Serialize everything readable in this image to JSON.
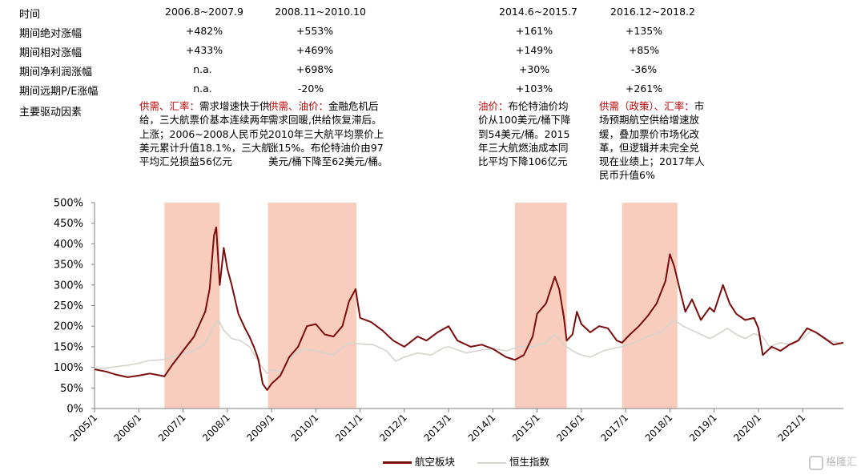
{
  "table": {
    "rows": [
      {
        "label": "时间",
        "values": [
          "2006.8~2007.9",
          "2008.11~2010.10",
          "2014.6~2015.7",
          "2016.12~2018.2"
        ]
      },
      {
        "label": "期间绝对涨幅",
        "values": [
          "+482%",
          "+553%",
          "+161%",
          "+135%"
        ]
      },
      {
        "label": "期间相对涨幅",
        "values": [
          "+433%",
          "+469%",
          "+149%",
          "+85%"
        ]
      },
      {
        "label": "期间净利润涨幅",
        "values": [
          "n.a.",
          "+698%",
          "+30%",
          "-36%"
        ]
      },
      {
        "label": "期间远期P/E涨幅",
        "values": [
          "n.a.",
          "-20%",
          "+103%",
          "+261%"
        ]
      }
    ],
    "driver_label": "主要驱动因素",
    "drivers": [
      {
        "key": "供需、汇率：",
        "text": "需求增速快于供给，三大航票价基本连续两年上涨；2006~2008人民币兑美元累计升值18.1%，三大航平均汇兑损益56亿元"
      },
      {
        "key": "供需、油价：",
        "text": "金融危机后需求回暖,供给恢复滞后。2010年三大航平均票价上涨15%。布伦特油价由97美元/桶下降至62美元/桶。"
      },
      {
        "key": "油价：",
        "text": "布伦特油价均价从100美元/桶下降到54美元/桶。2015年三大航燃油成本同比平均下降106亿元"
      },
      {
        "key": "供需（政策）、汇率：",
        "text": "市场预期航空供给增速放缓，叠加票价市场化改革，但逻辑并未完全兑现在业绩上；2017年人民币升值6%"
      }
    ]
  },
  "chart_data": {
    "type": "line",
    "yticks": [
      "0%",
      "50%",
      "100%",
      "150%",
      "200%",
      "250%",
      "300%",
      "350%",
      "400%",
      "450%",
      "500%"
    ],
    "ylim": [
      0,
      500
    ],
    "xticks": [
      "2005/1",
      "2006/1",
      "2007/1",
      "2008/1",
      "2009/1",
      "2010/1",
      "2011/1",
      "2012/1",
      "2013/1",
      "2014/1",
      "2015/1",
      "2016/1",
      "2017/1",
      "2018/1",
      "2019/1",
      "2020/1",
      "2021/1"
    ],
    "xlim": [
      2005.0,
      2021.92
    ],
    "shaded_periods": [
      [
        2006.58,
        2007.83
      ],
      [
        2008.92,
        2010.92
      ],
      [
        2014.5,
        2015.67
      ],
      [
        2016.92,
        2018.17
      ]
    ],
    "shade_color": "#f8cdbd",
    "series": [
      {
        "name": "航空板块",
        "color": "#7b0c0c",
        "points": [
          [
            2005.0,
            95
          ],
          [
            2005.25,
            90
          ],
          [
            2005.5,
            82
          ],
          [
            2005.75,
            76
          ],
          [
            2006.0,
            80
          ],
          [
            2006.25,
            85
          ],
          [
            2006.5,
            80
          ],
          [
            2006.58,
            78
          ],
          [
            2006.75,
            105
          ],
          [
            2007.0,
            140
          ],
          [
            2007.25,
            175
          ],
          [
            2007.5,
            235
          ],
          [
            2007.6,
            290
          ],
          [
            2007.7,
            420
          ],
          [
            2007.75,
            440
          ],
          [
            2007.83,
            300
          ],
          [
            2007.92,
            390
          ],
          [
            2008.0,
            340
          ],
          [
            2008.1,
            300
          ],
          [
            2008.25,
            230
          ],
          [
            2008.4,
            195
          ],
          [
            2008.5,
            175
          ],
          [
            2008.6,
            150
          ],
          [
            2008.7,
            120
          ],
          [
            2008.8,
            60
          ],
          [
            2008.9,
            45
          ],
          [
            2009.0,
            60
          ],
          [
            2009.2,
            80
          ],
          [
            2009.4,
            125
          ],
          [
            2009.6,
            150
          ],
          [
            2009.8,
            200
          ],
          [
            2010.0,
            205
          ],
          [
            2010.2,
            180
          ],
          [
            2010.4,
            175
          ],
          [
            2010.6,
            200
          ],
          [
            2010.75,
            260
          ],
          [
            2010.9,
            290
          ],
          [
            2011.0,
            220
          ],
          [
            2011.25,
            210
          ],
          [
            2011.5,
            190
          ],
          [
            2011.75,
            165
          ],
          [
            2012.0,
            150
          ],
          [
            2012.3,
            175
          ],
          [
            2012.5,
            165
          ],
          [
            2012.75,
            185
          ],
          [
            2013.0,
            200
          ],
          [
            2013.2,
            165
          ],
          [
            2013.5,
            150
          ],
          [
            2013.75,
            155
          ],
          [
            2014.0,
            145
          ],
          [
            2014.3,
            125
          ],
          [
            2014.5,
            118
          ],
          [
            2014.7,
            130
          ],
          [
            2014.9,
            175
          ],
          [
            2015.0,
            230
          ],
          [
            2015.2,
            255
          ],
          [
            2015.4,
            320
          ],
          [
            2015.5,
            290
          ],
          [
            2015.6,
            225
          ],
          [
            2015.67,
            165
          ],
          [
            2015.8,
            180
          ],
          [
            2015.9,
            235
          ],
          [
            2016.0,
            205
          ],
          [
            2016.2,
            185
          ],
          [
            2016.4,
            200
          ],
          [
            2016.6,
            195
          ],
          [
            2016.8,
            165
          ],
          [
            2016.92,
            160
          ],
          [
            2017.1,
            180
          ],
          [
            2017.3,
            200
          ],
          [
            2017.5,
            225
          ],
          [
            2017.7,
            255
          ],
          [
            2017.9,
            310
          ],
          [
            2018.0,
            375
          ],
          [
            2018.1,
            345
          ],
          [
            2018.2,
            300
          ],
          [
            2018.35,
            235
          ],
          [
            2018.5,
            265
          ],
          [
            2018.7,
            215
          ],
          [
            2018.9,
            245
          ],
          [
            2019.0,
            235
          ],
          [
            2019.2,
            300
          ],
          [
            2019.35,
            255
          ],
          [
            2019.5,
            230
          ],
          [
            2019.7,
            215
          ],
          [
            2019.9,
            220
          ],
          [
            2020.0,
            195
          ],
          [
            2020.1,
            130
          ],
          [
            2020.3,
            150
          ],
          [
            2020.5,
            140
          ],
          [
            2020.7,
            155
          ],
          [
            2020.9,
            165
          ],
          [
            2021.1,
            195
          ],
          [
            2021.3,
            185
          ],
          [
            2021.5,
            170
          ],
          [
            2021.7,
            155
          ],
          [
            2021.92,
            160
          ]
        ]
      },
      {
        "name": "恒生指数",
        "color": "#d4d4ce",
        "points": [
          [
            2005.0,
            97
          ],
          [
            2005.25,
            98
          ],
          [
            2005.5,
            102
          ],
          [
            2005.75,
            105
          ],
          [
            2006.0,
            110
          ],
          [
            2006.25,
            117
          ],
          [
            2006.5,
            118
          ],
          [
            2006.75,
            125
          ],
          [
            2007.0,
            133
          ],
          [
            2007.25,
            140
          ],
          [
            2007.5,
            158
          ],
          [
            2007.7,
            200
          ],
          [
            2007.8,
            215
          ],
          [
            2007.92,
            190
          ],
          [
            2008.1,
            170
          ],
          [
            2008.3,
            165
          ],
          [
            2008.5,
            150
          ],
          [
            2008.75,
            105
          ],
          [
            2008.9,
            85
          ],
          [
            2009.0,
            95
          ],
          [
            2009.2,
            90
          ],
          [
            2009.5,
            130
          ],
          [
            2009.75,
            145
          ],
          [
            2010.0,
            140
          ],
          [
            2010.4,
            130
          ],
          [
            2010.75,
            160
          ],
          [
            2011.0,
            157
          ],
          [
            2011.3,
            155
          ],
          [
            2011.6,
            140
          ],
          [
            2011.8,
            115
          ],
          [
            2012.0,
            125
          ],
          [
            2012.3,
            135
          ],
          [
            2012.6,
            130
          ],
          [
            2012.9,
            148
          ],
          [
            2013.0,
            150
          ],
          [
            2013.4,
            135
          ],
          [
            2013.75,
            142
          ],
          [
            2014.0,
            145
          ],
          [
            2014.3,
            140
          ],
          [
            2014.6,
            150
          ],
          [
            2014.9,
            150
          ],
          [
            2015.2,
            160
          ],
          [
            2015.4,
            180
          ],
          [
            2015.6,
            155
          ],
          [
            2015.8,
            140
          ],
          [
            2016.0,
            130
          ],
          [
            2016.2,
            125
          ],
          [
            2016.5,
            140
          ],
          [
            2016.8,
            148
          ],
          [
            2016.92,
            150
          ],
          [
            2017.2,
            160
          ],
          [
            2017.5,
            175
          ],
          [
            2017.8,
            185
          ],
          [
            2018.0,
            205
          ],
          [
            2018.1,
            215
          ],
          [
            2018.3,
            200
          ],
          [
            2018.6,
            185
          ],
          [
            2018.9,
            170
          ],
          [
            2019.0,
            175
          ],
          [
            2019.3,
            195
          ],
          [
            2019.5,
            180
          ],
          [
            2019.7,
            170
          ],
          [
            2019.9,
            182
          ],
          [
            2020.1,
            175
          ],
          [
            2020.25,
            150
          ],
          [
            2020.5,
            160
          ],
          [
            2020.75,
            155
          ],
          [
            2021.0,
            170
          ],
          [
            2021.2,
            190
          ],
          [
            2021.4,
            180
          ],
          [
            2021.6,
            165
          ],
          [
            2021.8,
            160
          ],
          [
            2021.92,
            158
          ]
        ]
      }
    ]
  },
  "legend": [
    {
      "label": "航空板块",
      "color": "#7b0c0c"
    },
    {
      "label": "恒生指数",
      "color": "#d4d4ce"
    }
  ],
  "logo_text": "格隆汇"
}
